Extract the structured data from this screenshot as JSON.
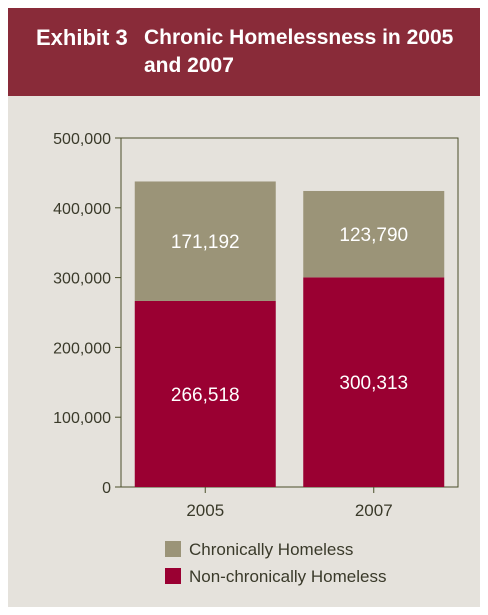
{
  "header": {
    "exhibit": "Exhibit 3",
    "title": "Chronic Homelessness in 2005 and 2007"
  },
  "colors": {
    "header_bg": "#892b39",
    "panel_bg": "#e5e2dc",
    "chronic": "#9b9478",
    "non_chronic": "#9a0032",
    "axis": "#4a4f2a"
  },
  "chart_data": {
    "type": "bar",
    "stacked": true,
    "title": "Chronic Homelessness in 2005 and 2007",
    "categories": [
      "2005",
      "2007"
    ],
    "series": [
      {
        "name": "Non-chronically Homeless",
        "values": [
          266518,
          300313
        ],
        "labels": [
          "266,518",
          "300,313"
        ]
      },
      {
        "name": "Chronically Homeless",
        "values": [
          171192,
          123790
        ],
        "labels": [
          "171,192",
          "123,790"
        ]
      }
    ],
    "ylim": [
      0,
      500000
    ],
    "yticks": [
      0,
      100000,
      200000,
      300000,
      400000,
      500000
    ],
    "ytick_labels": [
      "0",
      "100,000",
      "200,000",
      "300,000",
      "400,000",
      "500,000"
    ],
    "grid": false,
    "legend": {
      "position": "bottom",
      "order": [
        "Chronically Homeless",
        "Non-chronically Homeless"
      ]
    }
  }
}
